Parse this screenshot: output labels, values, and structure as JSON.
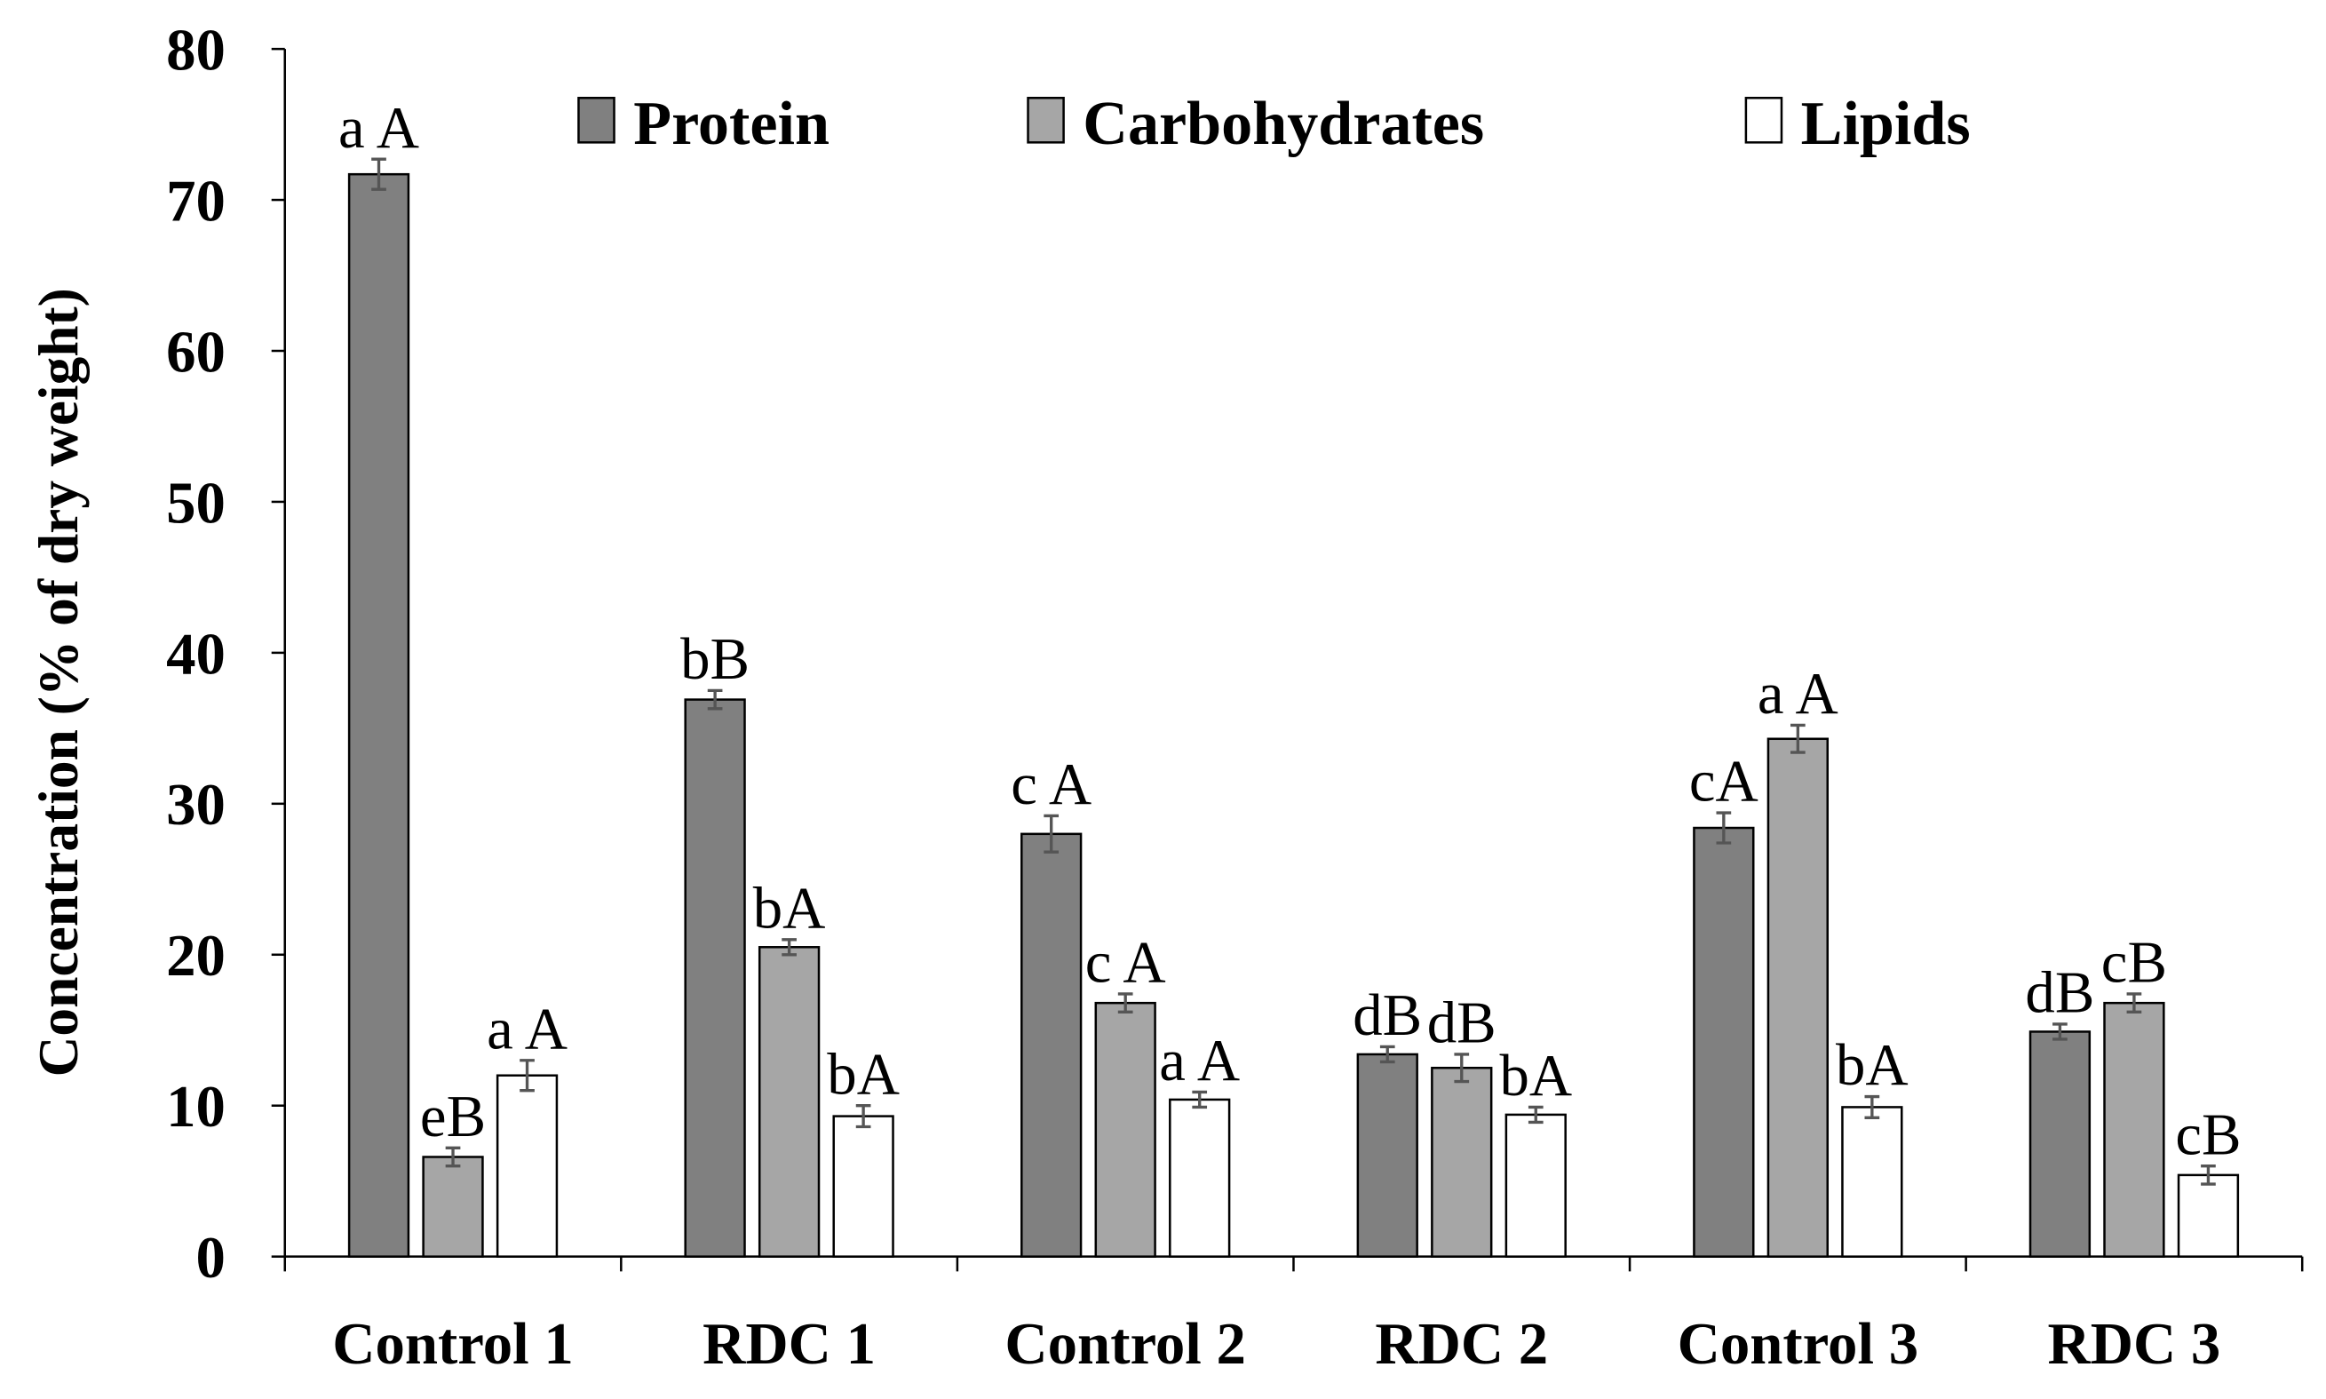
{
  "chart_data": {
    "type": "bar",
    "title": "",
    "xlabel": "",
    "ylabel": "Concentration (% of dry weight)",
    "ylim": [
      0,
      80
    ],
    "yticks": [
      0,
      10,
      20,
      30,
      40,
      50,
      60,
      70,
      80
    ],
    "grid": false,
    "legend_position": "top",
    "categories": [
      "Control 1",
      "RDC 1",
      "Control 2",
      "RDC 2",
      "Control 3",
      "RDC 3"
    ],
    "series": [
      {
        "name": "Protein",
        "color": "#808080",
        "values": [
          71.7,
          36.9,
          28.0,
          13.4,
          28.4,
          14.9
        ],
        "errors": [
          1.0,
          0.6,
          1.2,
          0.5,
          1.0,
          0.5
        ],
        "labels": [
          "a A",
          "bB",
          "c A",
          "dB",
          "cA",
          "dB"
        ]
      },
      {
        "name": "Carbohydrates",
        "color": "#a6a6a6",
        "values": [
          6.6,
          20.5,
          16.8,
          12.5,
          34.3,
          16.8
        ],
        "errors": [
          0.6,
          0.5,
          0.6,
          0.9,
          0.9,
          0.6
        ],
        "labels": [
          "eB",
          "bA",
          "c A",
          "dB",
          "a A",
          "cB"
        ]
      },
      {
        "name": "Lipids",
        "color": "#ffffff",
        "values": [
          12.0,
          9.3,
          10.4,
          9.4,
          9.9,
          5.4
        ],
        "errors": [
          1.0,
          0.7,
          0.5,
          0.5,
          0.7,
          0.6
        ],
        "labels": [
          "a A",
          "bA",
          "a A",
          "bA",
          "bA",
          "cB"
        ]
      }
    ]
  }
}
